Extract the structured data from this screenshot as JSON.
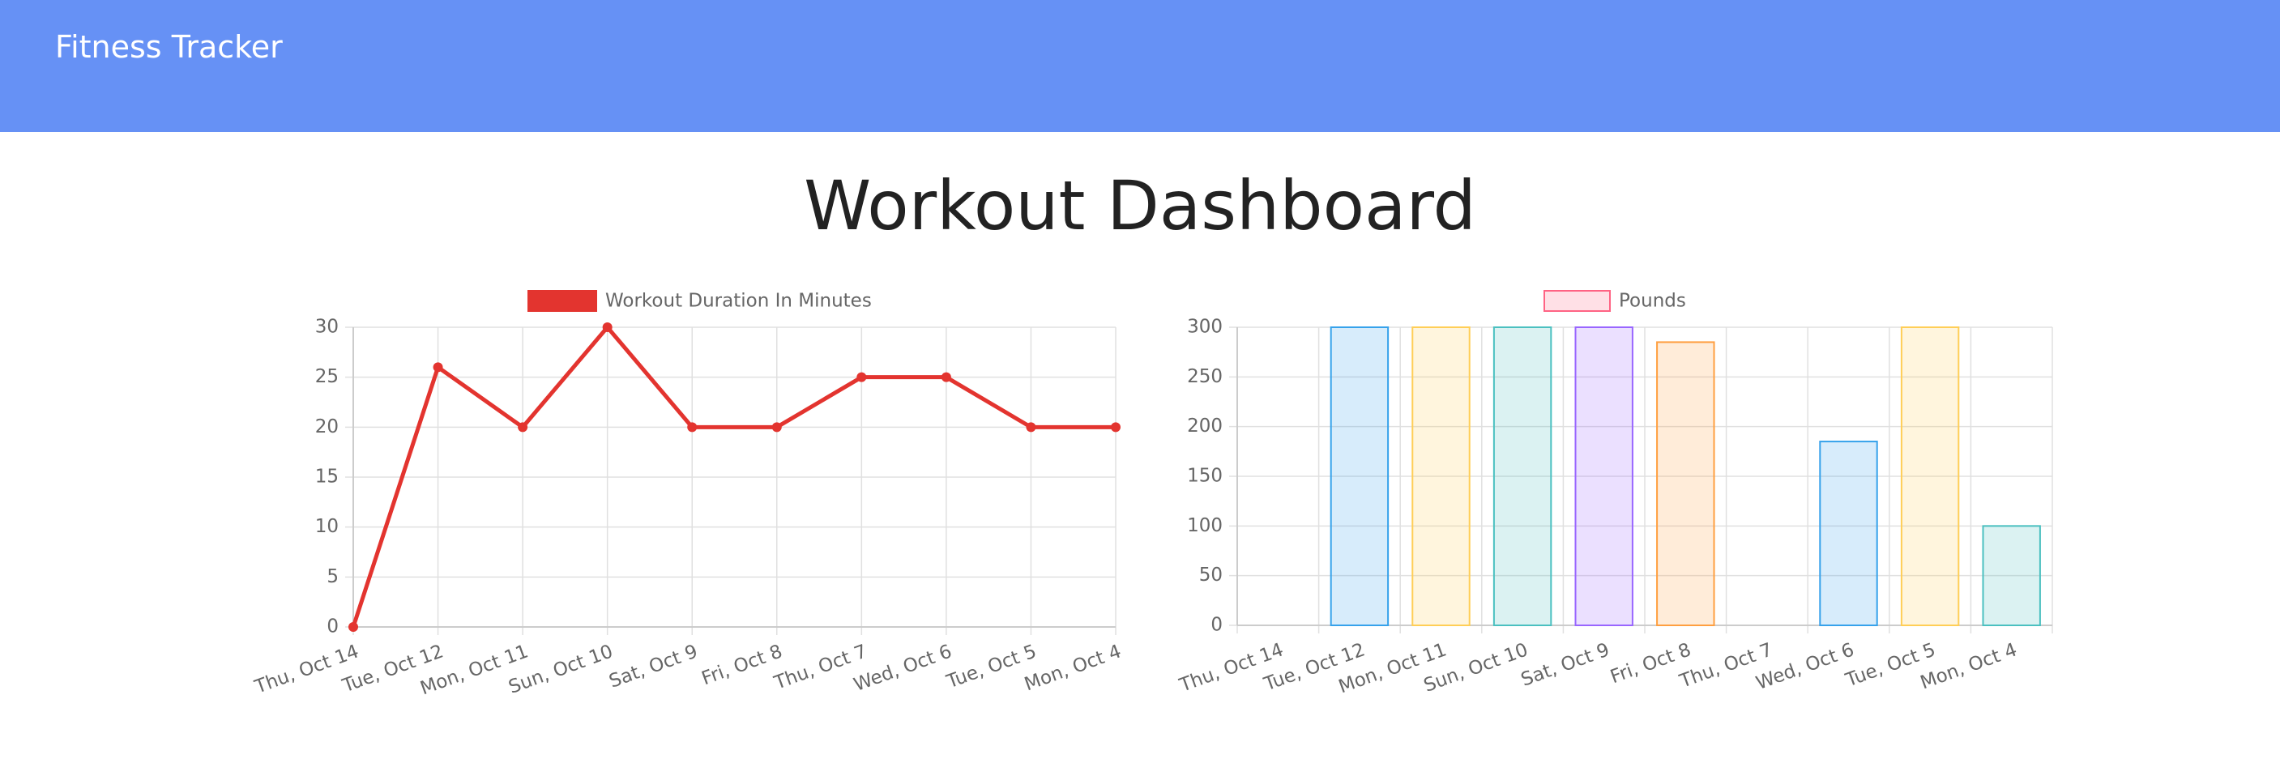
{
  "header": {
    "title": "Fitness Tracker"
  },
  "page": {
    "title": "Workout Dashboard"
  },
  "chart_data": [
    {
      "type": "line",
      "categories": [
        "Thu, Oct 14",
        "Tue, Oct 12",
        "Mon, Oct 11",
        "Sun, Oct 10",
        "Sat, Oct 9",
        "Fri, Oct 8",
        "Thu, Oct 7",
        "Wed, Oct 6",
        "Tue, Oct 5",
        "Mon, Oct 4"
      ],
      "series": [
        {
          "name": "Workout Duration In Minutes",
          "color": "#e3342f",
          "values": [
            0,
            26,
            20,
            30,
            20,
            20,
            25,
            25,
            20,
            20
          ]
        }
      ],
      "ylim": [
        0,
        30
      ],
      "yticks": [
        0,
        5,
        10,
        15,
        20,
        25,
        30
      ],
      "grid": true
    },
    {
      "type": "bar",
      "categories": [
        "Thu, Oct 14",
        "Tue, Oct 12",
        "Mon, Oct 11",
        "Sun, Oct 10",
        "Sat, Oct 9",
        "Fri, Oct 8",
        "Thu, Oct 7",
        "Wed, Oct 6",
        "Tue, Oct 5",
        "Mon, Oct 4"
      ],
      "series": [
        {
          "name": "Pounds",
          "color": "#ff6384",
          "colors": [
            "#ff6384",
            "#36a2eb",
            "#ffce56",
            "#4bc0c0",
            "#9966ff",
            "#ff9f40",
            "#ff6384",
            "#36a2eb",
            "#ffce56",
            "#4bc0c0"
          ],
          "values": [
            0,
            300,
            300,
            300,
            300,
            285,
            0,
            185,
            300,
            100
          ]
        }
      ],
      "ylim": [
        0,
        300
      ],
      "yticks": [
        0,
        50,
        100,
        150,
        200,
        250,
        300
      ],
      "grid": true
    }
  ]
}
